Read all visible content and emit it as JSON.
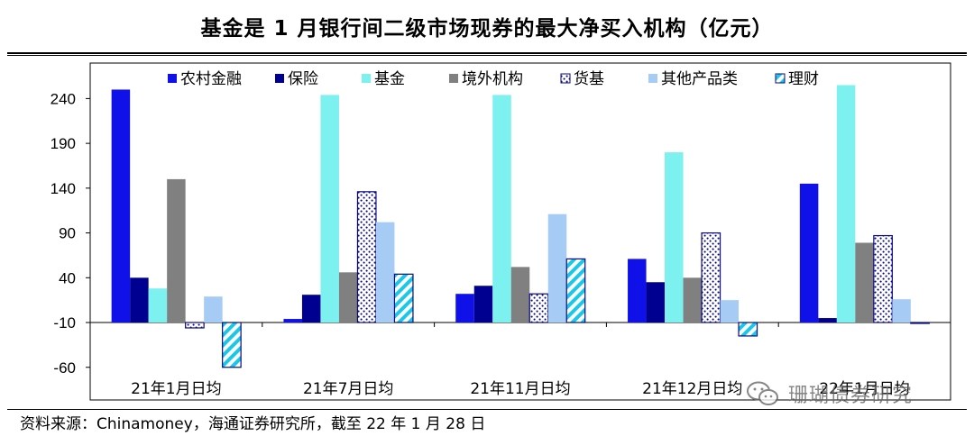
{
  "title": "基金是 1 月银行间二级市场现券的最大净买入机构（亿元）",
  "source": "资料来源：Chinamoney，海通证券研究所，截至 22 年 1 月 28 日",
  "watermark": "珊瑚债券研究",
  "chart_data": {
    "type": "bar",
    "categories": [
      "21年1月日均",
      "21年7月日均",
      "21年11月日均",
      "21年12月日均",
      "22年1月日均"
    ],
    "yticks": [
      240,
      190,
      140,
      90,
      40,
      -10,
      -60
    ],
    "ylim": [
      -60,
      260
    ],
    "grid": false,
    "legend_position": "top",
    "series": [
      {
        "name": "农村金融",
        "values": [
          250,
          -6,
          22,
          61,
          145
        ],
        "color": "#1010E8",
        "pattern": "solid"
      },
      {
        "name": "保险",
        "values": [
          40,
          21,
          31,
          35,
          -5
        ],
        "color": "#000090",
        "pattern": "solid"
      },
      {
        "name": "基金",
        "values": [
          28,
          244,
          244,
          180,
          255
        ],
        "color": "#7DF0F0",
        "pattern": "solid"
      },
      {
        "name": "境外机构",
        "values": [
          150,
          46,
          52,
          40,
          79
        ],
        "color": "#808080",
        "pattern": "solid"
      },
      {
        "name": "货基",
        "values": [
          -16,
          136,
          22,
          90,
          87
        ],
        "color": "#0A0A80",
        "pattern": "dots"
      },
      {
        "name": "其他产品类",
        "values": [
          19,
          102,
          111,
          15,
          16
        ],
        "color": "#A6CCF5",
        "pattern": "solid"
      },
      {
        "name": "理财",
        "values": [
          -60,
          44,
          61,
          -25,
          -11
        ],
        "color": "#18C8E8",
        "pattern": "stripes"
      }
    ]
  }
}
